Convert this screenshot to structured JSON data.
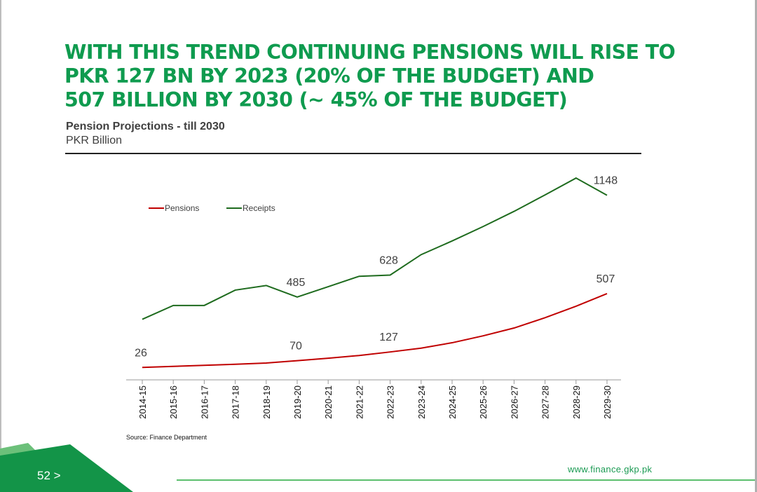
{
  "header": {
    "title_lines": [
      "WITH THIS TREND CONTINUING PENSIONS WILL RISE TO",
      "PKR 127 BN BY 2023 (20% OF THE BUDGET) AND",
      "507 BILLION BY 2030 (~ 45% OF THE BUDGET)"
    ]
  },
  "chart_data": {
    "type": "line",
    "title": "Pension Projections - till 2030",
    "subtitle": "PKR Billion",
    "categories": [
      "2014-15",
      "2015-16",
      "2016-17",
      "2017-18",
      "2018-19",
      "2019-20",
      "2020-21",
      "2021-22",
      "2022-23",
      "2023-24",
      "2024-25",
      "2025-26",
      "2026-27",
      "2027-28",
      "2028-29",
      "2029-30"
    ],
    "series": [
      {
        "name": "Pensions",
        "color": "#c00000",
        "values": [
          26,
          33,
          40,
          47,
          55,
          70,
          86,
          104,
          127,
          152,
          187,
          232,
          283,
          350,
          425,
          507
        ]
      },
      {
        "name": "Receipts",
        "color": "#1e6b1e",
        "values": [
          340,
          430,
          430,
          530,
          560,
          485,
          552,
          620,
          628,
          761,
          850,
          944,
          1043,
          1150,
          1260,
          1148
        ]
      }
    ],
    "data_labels": [
      {
        "series": "Pensions",
        "index": 0,
        "text": "26"
      },
      {
        "series": "Pensions",
        "index": 5,
        "text": "70"
      },
      {
        "series": "Pensions",
        "index": 8,
        "text": "127"
      },
      {
        "series": "Pensions",
        "index": 15,
        "text": "507"
      },
      {
        "series": "Receipts",
        "index": 5,
        "text": "485"
      },
      {
        "series": "Receipts",
        "index": 8,
        "text": "628"
      },
      {
        "series": "Receipts",
        "index": 15,
        "text": "1148"
      }
    ],
    "legend_position": "top-left",
    "xlabel": "",
    "ylabel": "",
    "ylim": [
      0,
      1400
    ],
    "grid": false
  },
  "footer": {
    "source": "Source: Finance Department",
    "website": "www.finance.gkp.pk",
    "page": "52 >"
  },
  "colors": {
    "brand_green": "#0f9b4f",
    "footer_green": "#139448",
    "light_green": "#6cc07a"
  }
}
